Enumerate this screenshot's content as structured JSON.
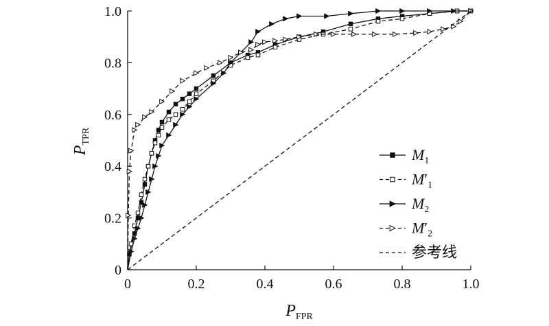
{
  "chart_data": {
    "type": "line",
    "xlabel": {
      "main": "P",
      "sub": "FPR"
    },
    "ylabel": {
      "main": "P",
      "sub": "TPR"
    },
    "xlim": [
      0,
      1
    ],
    "ylim": [
      0,
      1
    ],
    "x_ticks": [
      "0",
      "0.2",
      "0.4",
      "0.6",
      "0.8",
      "1.0"
    ],
    "y_ticks": [
      "0",
      "0.2",
      "0.4",
      "0.6",
      "0.8",
      "1.0"
    ],
    "grid": false,
    "legend_position": "bottom-right",
    "series": [
      {
        "legend_label": "M",
        "legend_sub": "1",
        "prime": false,
        "line_style": "solid",
        "marker": "square-filled",
        "color": "#111111",
        "x": [
          0,
          0.005,
          0.02,
          0.03,
          0.04,
          0.05,
          0.06,
          0.07,
          0.08,
          0.09,
          0.1,
          0.12,
          0.14,
          0.16,
          0.18,
          0.2,
          0.25,
          0.3,
          0.35,
          0.38,
          0.43,
          0.5,
          0.57,
          0.65,
          0.73,
          0.8,
          0.88,
          0.96,
          1.0
        ],
        "y": [
          0,
          0.06,
          0.14,
          0.2,
          0.26,
          0.33,
          0.4,
          0.45,
          0.5,
          0.54,
          0.57,
          0.61,
          0.64,
          0.66,
          0.68,
          0.7,
          0.75,
          0.8,
          0.83,
          0.84,
          0.87,
          0.9,
          0.92,
          0.95,
          0.97,
          0.98,
          0.99,
          1.0,
          1.0
        ]
      },
      {
        "legend_label": "M",
        "legend_sub": "1",
        "prime": true,
        "line_style": "dashed",
        "marker": "square-open",
        "color": "#111111",
        "x": [
          0,
          0.01,
          0.02,
          0.03,
          0.04,
          0.05,
          0.06,
          0.07,
          0.08,
          0.09,
          0.1,
          0.12,
          0.14,
          0.16,
          0.18,
          0.2,
          0.25,
          0.3,
          0.35,
          0.38,
          0.43,
          0.5,
          0.57,
          0.65,
          0.73,
          0.8,
          0.88,
          0.96,
          1.0
        ],
        "y": [
          0,
          0.1,
          0.17,
          0.22,
          0.29,
          0.35,
          0.4,
          0.45,
          0.49,
          0.52,
          0.55,
          0.58,
          0.6,
          0.62,
          0.65,
          0.68,
          0.73,
          0.79,
          0.82,
          0.83,
          0.86,
          0.89,
          0.91,
          0.93,
          0.96,
          0.97,
          0.99,
          1.0,
          1.0
        ]
      },
      {
        "legend_label": "M",
        "legend_sub": "2",
        "prime": false,
        "line_style": "solid",
        "marker": "triangle-filled",
        "color": "#111111",
        "x": [
          0,
          0.01,
          0.02,
          0.03,
          0.04,
          0.05,
          0.06,
          0.07,
          0.08,
          0.09,
          0.1,
          0.12,
          0.14,
          0.16,
          0.18,
          0.2,
          0.25,
          0.28,
          0.3,
          0.33,
          0.36,
          0.38,
          0.42,
          0.46,
          0.5,
          0.58,
          0.65,
          0.73,
          0.8,
          0.88,
          0.95,
          1.0
        ],
        "y": [
          0,
          0.07,
          0.12,
          0.16,
          0.2,
          0.25,
          0.3,
          0.35,
          0.4,
          0.44,
          0.48,
          0.52,
          0.56,
          0.6,
          0.63,
          0.66,
          0.72,
          0.76,
          0.8,
          0.84,
          0.88,
          0.92,
          0.95,
          0.97,
          0.98,
          0.98,
          0.99,
          1.0,
          1.0,
          1.0,
          1.0,
          1.0
        ]
      },
      {
        "legend_label": "M",
        "legend_sub": "2",
        "prime": true,
        "line_style": "dashed",
        "marker": "triangle-open",
        "color": "#111111",
        "x": [
          0,
          0.002,
          0.005,
          0.01,
          0.02,
          0.03,
          0.05,
          0.07,
          0.1,
          0.13,
          0.16,
          0.2,
          0.23,
          0.27,
          0.3,
          0.33,
          0.36,
          0.38,
          0.4,
          0.43,
          0.46,
          0.5,
          0.55,
          0.6,
          0.66,
          0.72,
          0.78,
          0.84,
          0.88,
          0.92,
          0.95,
          0.97,
          1.0
        ],
        "y": [
          0,
          0.21,
          0.38,
          0.46,
          0.54,
          0.56,
          0.59,
          0.61,
          0.65,
          0.69,
          0.73,
          0.76,
          0.78,
          0.8,
          0.82,
          0.84,
          0.85,
          0.87,
          0.88,
          0.885,
          0.89,
          0.9,
          0.91,
          0.91,
          0.91,
          0.91,
          0.91,
          0.915,
          0.92,
          0.93,
          0.94,
          0.96,
          1.0
        ]
      },
      {
        "legend_label": "参考线",
        "legend_sub": "",
        "prime": false,
        "line_style": "dashed",
        "marker": "none",
        "color": "#111111",
        "x": [
          0,
          1
        ],
        "y": [
          0,
          1
        ]
      }
    ]
  }
}
